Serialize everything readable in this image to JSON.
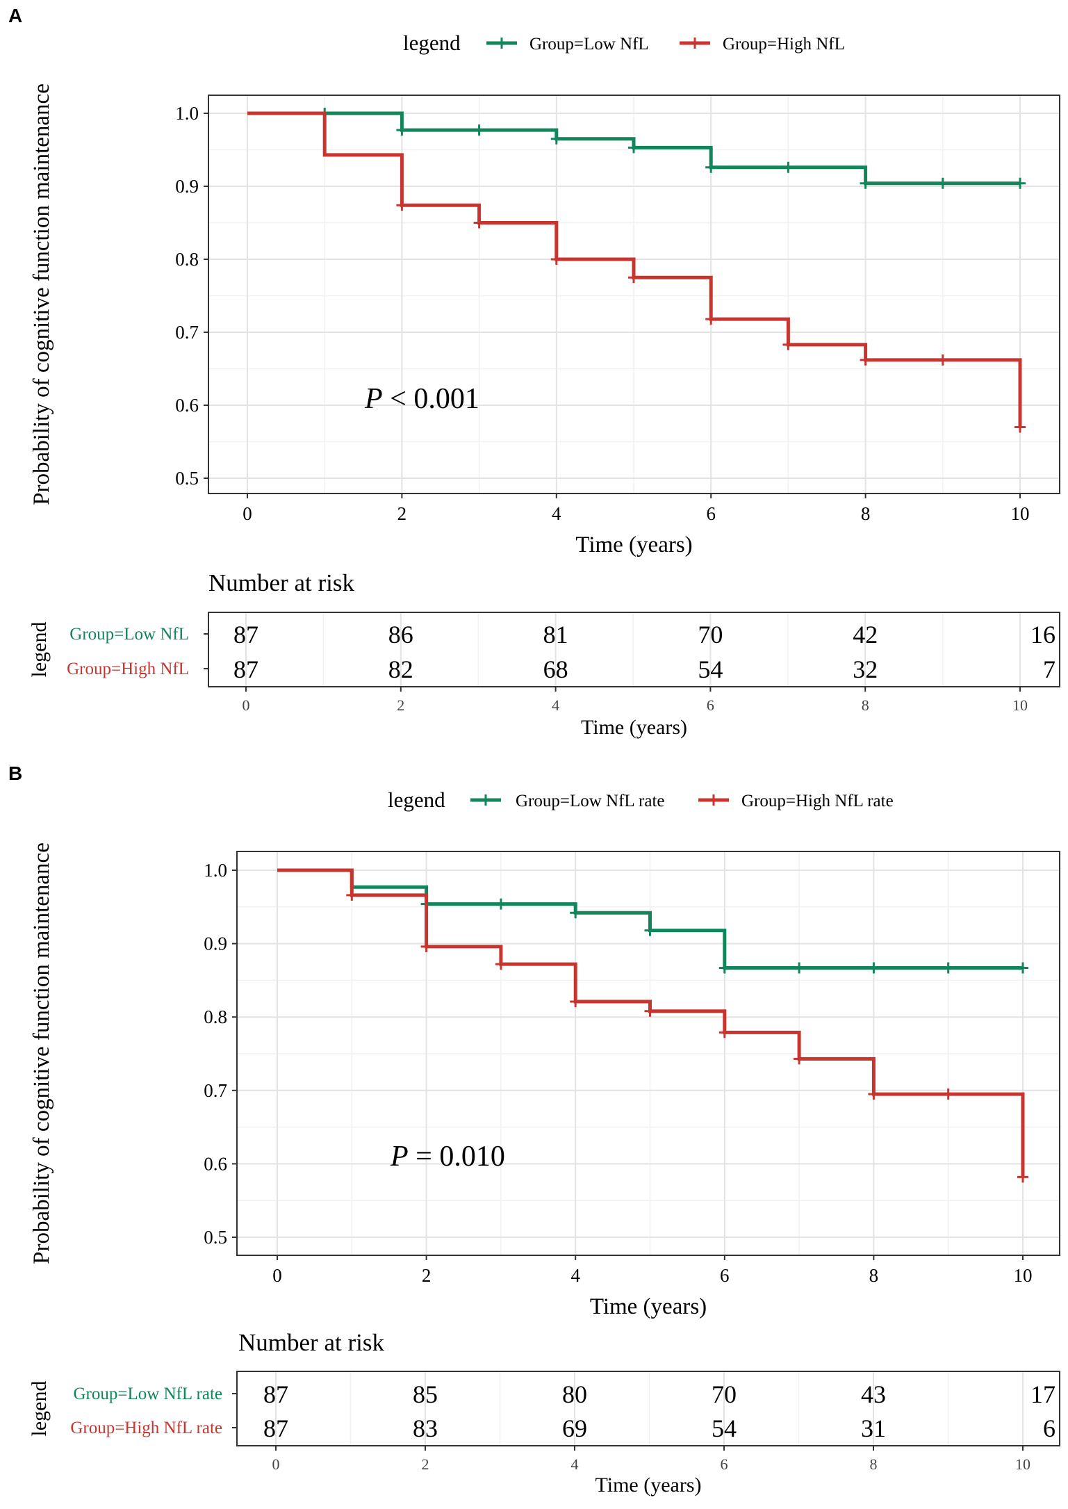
{
  "chart_data": [
    {
      "type": "kaplan-meier",
      "panel_label": "A",
      "legend": {
        "title": "legend",
        "placement": "top",
        "entries": [
          "Group=Low NfL",
          "Group=High NfL"
        ]
      },
      "xlabel": "Time (years)",
      "ylabel": "Probability of cognitive function maintenance",
      "xlim": [
        0,
        10
      ],
      "ylim": [
        0.5,
        1.0
      ],
      "xticks": [
        "0",
        "2",
        "4",
        "6",
        "8",
        "10"
      ],
      "yticks": [
        "0.5",
        "0.6",
        "0.7",
        "0.8",
        "0.9",
        "1.0"
      ],
      "grid": true,
      "pvalue_label": "P",
      "pvalue_text": " < 0.001",
      "series": [
        {
          "name": "Group=Low NfL",
          "color": "#12855a",
          "steps": [
            [
              0,
              1.0
            ],
            [
              2,
              0.977
            ],
            [
              4,
              0.965
            ],
            [
              5,
              0.953
            ],
            [
              6,
              0.926
            ],
            [
              8,
              0.904
            ]
          ],
          "end": 10,
          "censor_marks": [
            [
              1,
              1.0
            ],
            [
              2,
              0.977
            ],
            [
              3,
              0.977
            ],
            [
              4,
              0.965
            ],
            [
              5,
              0.953
            ],
            [
              6,
              0.926
            ],
            [
              7,
              0.926
            ],
            [
              8,
              0.904
            ],
            [
              9,
              0.904
            ],
            [
              10,
              0.904
            ]
          ]
        },
        {
          "name": "Group=High NfL",
          "color": "#c8352f",
          "steps": [
            [
              0,
              1.0
            ],
            [
              1,
              0.943
            ],
            [
              2,
              0.874
            ],
            [
              3,
              0.85
            ],
            [
              4,
              0.8
            ],
            [
              5,
              0.775
            ],
            [
              6,
              0.718
            ],
            [
              7,
              0.683
            ],
            [
              8,
              0.662
            ],
            [
              10,
              0.57
            ]
          ],
          "end": 10,
          "censor_marks": [
            [
              2,
              0.874
            ],
            [
              3,
              0.85
            ],
            [
              4,
              0.8
            ],
            [
              5,
              0.775
            ],
            [
              6,
              0.718
            ],
            [
              7,
              0.683
            ],
            [
              8,
              0.662
            ],
            [
              9,
              0.662
            ],
            [
              10,
              0.57
            ]
          ]
        }
      ],
      "risk_table": {
        "title": "Number at risk",
        "ylabel": "legend",
        "xlabel": "Time (years)",
        "times": [
          "0",
          "2",
          "4",
          "6",
          "8",
          "10"
        ],
        "rows": [
          {
            "label": "Group=Low NfL",
            "color": "#12855a",
            "counts": [
              "87",
              "86",
              "81",
              "70",
              "42",
              "16"
            ]
          },
          {
            "label": "Group=High NfL",
            "color": "#c8352f",
            "counts": [
              "87",
              "82",
              "68",
              "54",
              "32",
              "7"
            ]
          }
        ]
      }
    },
    {
      "type": "kaplan-meier",
      "panel_label": "B",
      "legend": {
        "title": "legend",
        "placement": "top",
        "entries": [
          "Group=Low NfL rate",
          "Group=High NfL rate"
        ]
      },
      "xlabel": "Time (years)",
      "ylabel": "Probability of cognitive function maintenance",
      "xlim": [
        0,
        10
      ],
      "ylim": [
        0.5,
        1.0
      ],
      "xticks": [
        "0",
        "2",
        "4",
        "6",
        "8",
        "10"
      ],
      "yticks": [
        "0.5",
        "0.6",
        "0.7",
        "0.8",
        "0.9",
        "1.0"
      ],
      "grid": true,
      "pvalue_label": "P",
      "pvalue_text": " = 0.010",
      "series": [
        {
          "name": "Group=Low NfL rate",
          "color": "#12855a",
          "steps": [
            [
              0,
              1.0
            ],
            [
              1,
              0.977
            ],
            [
              2,
              0.954
            ],
            [
              4,
              0.942
            ],
            [
              5,
              0.918
            ],
            [
              6,
              0.867
            ]
          ],
          "end": 10,
          "censor_marks": [
            [
              2,
              0.954
            ],
            [
              3,
              0.954
            ],
            [
              4,
              0.942
            ],
            [
              5,
              0.918
            ],
            [
              6,
              0.867
            ],
            [
              7,
              0.867
            ],
            [
              8,
              0.867
            ],
            [
              9,
              0.867
            ],
            [
              10,
              0.867
            ]
          ]
        },
        {
          "name": "Group=High NfL rate",
          "color": "#c8352f",
          "steps": [
            [
              0,
              1.0
            ],
            [
              1,
              0.966
            ],
            [
              2,
              0.896
            ],
            [
              3,
              0.872
            ],
            [
              4,
              0.821
            ],
            [
              5,
              0.808
            ],
            [
              6,
              0.779
            ],
            [
              7,
              0.743
            ],
            [
              8,
              0.695
            ],
            [
              10,
              0.582
            ]
          ],
          "end": 10,
          "censor_marks": [
            [
              1,
              0.966
            ],
            [
              2,
              0.896
            ],
            [
              3,
              0.872
            ],
            [
              4,
              0.821
            ],
            [
              5,
              0.808
            ],
            [
              6,
              0.779
            ],
            [
              7,
              0.743
            ],
            [
              8,
              0.695
            ],
            [
              9,
              0.695
            ],
            [
              10,
              0.582
            ]
          ]
        }
      ],
      "risk_table": {
        "title": "Number at risk",
        "ylabel": "legend",
        "xlabel": "Time (years)",
        "times": [
          "0",
          "2",
          "4",
          "6",
          "8",
          "10"
        ],
        "rows": [
          {
            "label": "Group=Low NfL rate",
            "color": "#12855a",
            "counts": [
              "87",
              "85",
              "80",
              "70",
              "43",
              "17"
            ]
          },
          {
            "label": "Group=High NfL rate",
            "color": "#c8352f",
            "counts": [
              "87",
              "83",
              "69",
              "54",
              "31",
              "6"
            ]
          }
        ]
      }
    }
  ]
}
